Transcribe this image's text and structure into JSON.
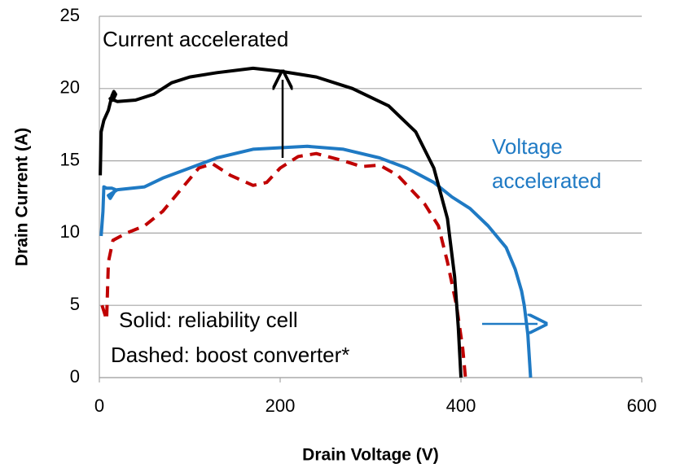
{
  "chart_data": {
    "type": "line",
    "xlabel": "Drain Voltage (V)",
    "ylabel": "Drain Current (A)",
    "xlim": [
      0,
      600
    ],
    "xticks": [
      0,
      200,
      400,
      600
    ],
    "ylim": [
      0,
      25
    ],
    "yticks": [
      0,
      5,
      10,
      15,
      20,
      25
    ],
    "grid": true,
    "annotations": [
      "Current accelerated",
      "Voltage",
      "accelerated",
      "Solid: reliability cell",
      "Dashed: boost converter*"
    ],
    "series": [
      {
        "color": "#000000",
        "dashed": false,
        "x": [
          1,
          2,
          5,
          10,
          14,
          16,
          18,
          15,
          12,
          20,
          40,
          60,
          80,
          100,
          130,
          170,
          200,
          240,
          280,
          320,
          350,
          370,
          385,
          393,
          397,
          400
        ],
        "values": [
          14,
          17,
          17.8,
          18.5,
          19.5,
          19.8,
          19.6,
          19.2,
          19.3,
          19.1,
          19.2,
          19.6,
          20.4,
          20.8,
          21.1,
          21.4,
          21.2,
          20.8,
          20,
          18.8,
          17,
          14.5,
          11,
          7,
          3.5,
          0
        ]
      },
      {
        "color": "#1f7ac4",
        "dashed": false,
        "x": [
          2,
          4,
          5,
          8,
          14,
          18,
          12,
          10,
          20,
          50,
          70,
          100,
          130,
          170,
          230,
          270,
          310,
          340,
          370,
          390,
          410,
          430,
          450,
          460,
          467,
          470,
          474,
          477
        ],
        "values": [
          9.8,
          11.5,
          13.2,
          13.1,
          13.1,
          13,
          12.4,
          12.6,
          13,
          13.2,
          13.8,
          14.5,
          15.2,
          15.8,
          16,
          15.8,
          15.2,
          14.5,
          13.5,
          12.5,
          11.7,
          10.5,
          9,
          7.5,
          6,
          5,
          3,
          0
        ]
      },
      {
        "color": "#c00000",
        "dashed": true,
        "x": [
          3,
          8,
          10,
          15,
          30,
          50,
          70,
          90,
          110,
          125,
          145,
          170,
          185,
          200,
          220,
          240,
          270,
          290,
          310,
          330,
          345,
          360,
          375,
          385,
          395,
          402,
          405
        ],
        "values": [
          5,
          4,
          8,
          9.5,
          10,
          10.5,
          11.5,
          13,
          14.5,
          14.8,
          14,
          13.3,
          13.5,
          14.5,
          15.3,
          15.5,
          15,
          14.6,
          14.7,
          14,
          13,
          12,
          10.5,
          8,
          5,
          2,
          0
        ]
      }
    ]
  }
}
